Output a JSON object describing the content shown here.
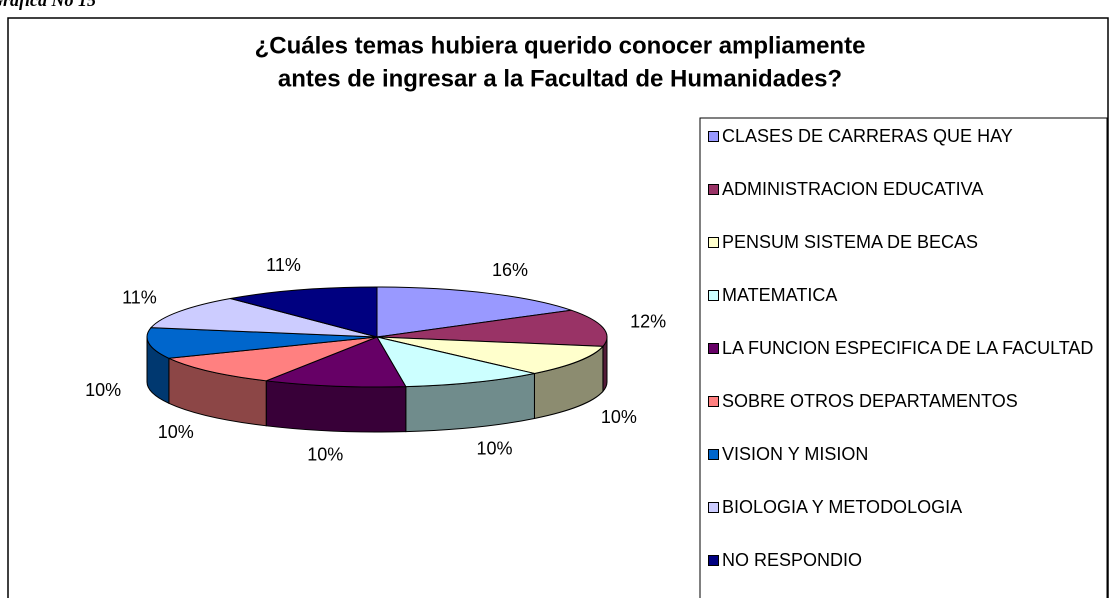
{
  "caption": "Grafica No 15",
  "chart_data": {
    "type": "pie",
    "title": [
      "¿Cuáles temas hubiera querido conocer ampliamente",
      "antes de ingresar a la Facultad de Humanidades?"
    ],
    "categories": [
      "CLASES DE CARRERAS QUE HAY",
      "ADMINISTRACION EDUCATIVA",
      "PENSUM SISTEMA DE BECAS",
      "MATEMATICA",
      "LA FUNCION ESPECIFICA DE LA FACULTAD",
      "SOBRE OTROS DEPARTAMENTOS",
      "VISION Y MISION",
      "BIOLOGIA Y METODOLOGIA",
      "NO RESPONDIO"
    ],
    "values": [
      16,
      12,
      10,
      10,
      10,
      10,
      10,
      11,
      11
    ],
    "value_labels": [
      "16%",
      "12%",
      "10%",
      "10%",
      "10%",
      "10%",
      "10%",
      "11%",
      "11%"
    ],
    "colors": [
      "#9999ff",
      "#993366",
      "#ffffcc",
      "#ccffff",
      "#660066",
      "#ff8080",
      "#0066cc",
      "#ccccff",
      "#000080"
    ],
    "legend": "right",
    "3d": true
  }
}
